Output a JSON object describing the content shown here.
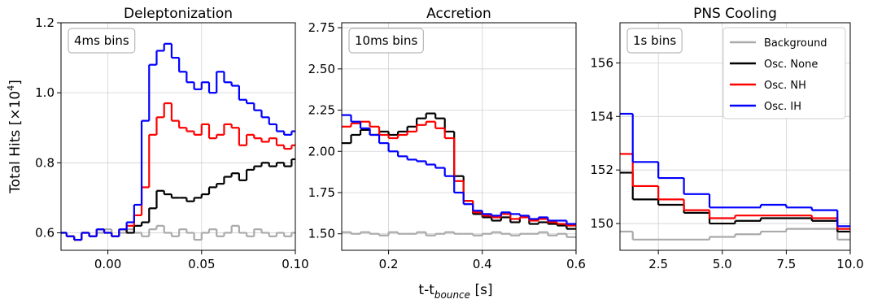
{
  "chart_data": [
    {
      "type": "step",
      "title": "Deleptonization",
      "annotation": "4ms bins",
      "x": [
        -0.026,
        -0.022,
        -0.018,
        -0.014,
        -0.01,
        -0.006,
        -0.002,
        0.002,
        0.006,
        0.01,
        0.014,
        0.018,
        0.022,
        0.026,
        0.03,
        0.034,
        0.038,
        0.042,
        0.046,
        0.05,
        0.054,
        0.058,
        0.062,
        0.066,
        0.07,
        0.074,
        0.078,
        0.082,
        0.086,
        0.09,
        0.094,
        0.098
      ],
      "series": [
        {
          "name": "Background",
          "color": "#aaaaaa",
          "values": [
            0.6,
            0.59,
            0.58,
            0.6,
            0.59,
            0.6,
            0.61,
            0.59,
            0.6,
            0.61,
            0.6,
            0.59,
            0.61,
            0.62,
            0.6,
            0.59,
            0.61,
            0.6,
            0.58,
            0.6,
            0.61,
            0.59,
            0.6,
            0.62,
            0.6,
            0.59,
            0.61,
            0.6,
            0.59,
            0.6,
            0.59,
            0.6
          ]
        },
        {
          "name": "Osc. None",
          "color": "#000000",
          "values": [
            0.6,
            0.59,
            0.58,
            0.6,
            0.59,
            0.61,
            0.6,
            0.59,
            0.61,
            0.6,
            0.62,
            0.63,
            0.67,
            0.72,
            0.71,
            0.7,
            0.7,
            0.69,
            0.7,
            0.71,
            0.73,
            0.74,
            0.76,
            0.77,
            0.75,
            0.78,
            0.79,
            0.8,
            0.79,
            0.8,
            0.79,
            0.81
          ]
        },
        {
          "name": "Osc. NH",
          "color": "#ff0000",
          "values": [
            0.6,
            0.59,
            0.58,
            0.6,
            0.59,
            0.61,
            0.6,
            0.59,
            0.61,
            0.62,
            0.65,
            0.73,
            0.88,
            0.93,
            0.97,
            0.92,
            0.9,
            0.89,
            0.88,
            0.91,
            0.87,
            0.88,
            0.91,
            0.9,
            0.85,
            0.88,
            0.87,
            0.86,
            0.87,
            0.85,
            0.84,
            0.85
          ]
        },
        {
          "name": "Osc. IH",
          "color": "#0000ff",
          "values": [
            0.6,
            0.59,
            0.58,
            0.6,
            0.59,
            0.61,
            0.6,
            0.59,
            0.61,
            0.63,
            0.68,
            0.92,
            1.08,
            1.12,
            1.14,
            1.1,
            1.06,
            1.03,
            1.01,
            1.03,
            1.0,
            1.06,
            1.03,
            1.02,
            0.98,
            0.97,
            0.95,
            0.93,
            0.91,
            0.89,
            0.88,
            0.89
          ]
        }
      ],
      "xlim": [
        -0.025,
        0.1
      ],
      "xticks": [
        {
          "value": 0,
          "label": "0.00"
        },
        0.05,
        {
          "value": 0.1,
          "label": "0.10"
        }
      ],
      "ylim": [
        0.55,
        1.2
      ],
      "yticks": [
        0.6,
        0.8,
        {
          "value": 1.0,
          "label": "1.0"
        },
        1.2
      ],
      "grid": true
    },
    {
      "type": "step",
      "title": "Accretion",
      "annotation": "10ms bins",
      "x": [
        0.1,
        0.12,
        0.14,
        0.16,
        0.18,
        0.2,
        0.22,
        0.24,
        0.26,
        0.28,
        0.3,
        0.32,
        0.34,
        0.36,
        0.38,
        0.4,
        0.42,
        0.44,
        0.46,
        0.48,
        0.5,
        0.52,
        0.54,
        0.56,
        0.58
      ],
      "series": [
        {
          "name": "Background",
          "color": "#aaaaaa",
          "values": [
            1.51,
            1.5,
            1.51,
            1.5,
            1.49,
            1.51,
            1.5,
            1.5,
            1.51,
            1.49,
            1.5,
            1.51,
            1.5,
            1.5,
            1.49,
            1.5,
            1.51,
            1.5,
            1.49,
            1.5,
            1.5,
            1.51,
            1.49,
            1.5,
            1.48
          ]
        },
        {
          "name": "Osc. None",
          "color": "#000000",
          "values": [
            2.05,
            2.1,
            2.13,
            2.1,
            2.12,
            2.1,
            2.12,
            2.15,
            2.2,
            2.23,
            2.2,
            2.12,
            1.85,
            1.7,
            1.62,
            1.6,
            1.58,
            1.6,
            1.57,
            1.6,
            1.56,
            1.57,
            1.56,
            1.55,
            1.53
          ]
        },
        {
          "name": "Osc. NH",
          "color": "#ff0000",
          "values": [
            2.15,
            2.17,
            2.18,
            2.15,
            2.1,
            2.08,
            2.1,
            2.12,
            2.16,
            2.18,
            2.14,
            2.08,
            1.82,
            1.7,
            1.63,
            1.61,
            1.6,
            1.62,
            1.59,
            1.6,
            1.58,
            1.59,
            1.57,
            1.56,
            1.55
          ]
        },
        {
          "name": "Osc. IH",
          "color": "#0000ff",
          "values": [
            2.22,
            2.18,
            2.14,
            2.1,
            2.05,
            2.0,
            1.97,
            1.95,
            1.94,
            1.92,
            1.9,
            1.85,
            1.75,
            1.68,
            1.64,
            1.62,
            1.61,
            1.63,
            1.62,
            1.61,
            1.59,
            1.6,
            1.58,
            1.58,
            1.56
          ]
        }
      ],
      "xlim": [
        0.1,
        0.6
      ],
      "xticks": [
        0.2,
        0.4,
        0.6
      ],
      "ylim": [
        1.4,
        2.78
      ],
      "yticks": [
        {
          "value": 1.5,
          "label": "1.50"
        },
        1.75,
        {
          "value": 2.0,
          "label": "2.00"
        },
        2.25,
        {
          "value": 2.5,
          "label": "2.50"
        },
        2.75
      ],
      "grid": true
    },
    {
      "type": "step",
      "title": "PNS Cooling",
      "annotation": "1s bins",
      "legend": "upper right",
      "x": [
        1,
        1.5,
        2.5,
        3.5,
        4.5,
        5.5,
        6.5,
        7.5,
        8.5,
        9.5
      ],
      "series": [
        {
          "name": "Background",
          "color": "#aaaaaa",
          "values": [
            149.7,
            149.4,
            149.4,
            149.4,
            149.5,
            149.6,
            149.7,
            149.8,
            149.8,
            149.4
          ]
        },
        {
          "name": "Osc. None",
          "color": "#000000",
          "values": [
            151.9,
            150.9,
            150.7,
            150.4,
            150.0,
            150.1,
            150.2,
            150.2,
            150.1,
            149.7
          ]
        },
        {
          "name": "Osc. NH",
          "color": "#ff0000",
          "values": [
            152.6,
            151.4,
            150.9,
            150.5,
            150.2,
            150.3,
            150.3,
            150.3,
            150.2,
            149.8
          ]
        },
        {
          "name": "Osc. IH",
          "color": "#0000ff",
          "values": [
            154.1,
            152.3,
            151.7,
            151.1,
            150.6,
            150.6,
            150.7,
            150.6,
            150.5,
            149.9
          ]
        }
      ],
      "xlim": [
        1,
        10
      ],
      "xticks": [
        2.5,
        {
          "value": 5,
          "label": "5.0"
        },
        7.5,
        {
          "value": 10,
          "label": "10.0"
        }
      ],
      "ylim": [
        149.0,
        157.5
      ],
      "yticks": [
        150,
        152,
        154,
        156
      ],
      "grid": true
    }
  ],
  "ylabel": [
    "Total Hits [×10",
    "4",
    "]"
  ],
  "xlabel": [
    "t-t",
    "bounce",
    " [s]"
  ]
}
